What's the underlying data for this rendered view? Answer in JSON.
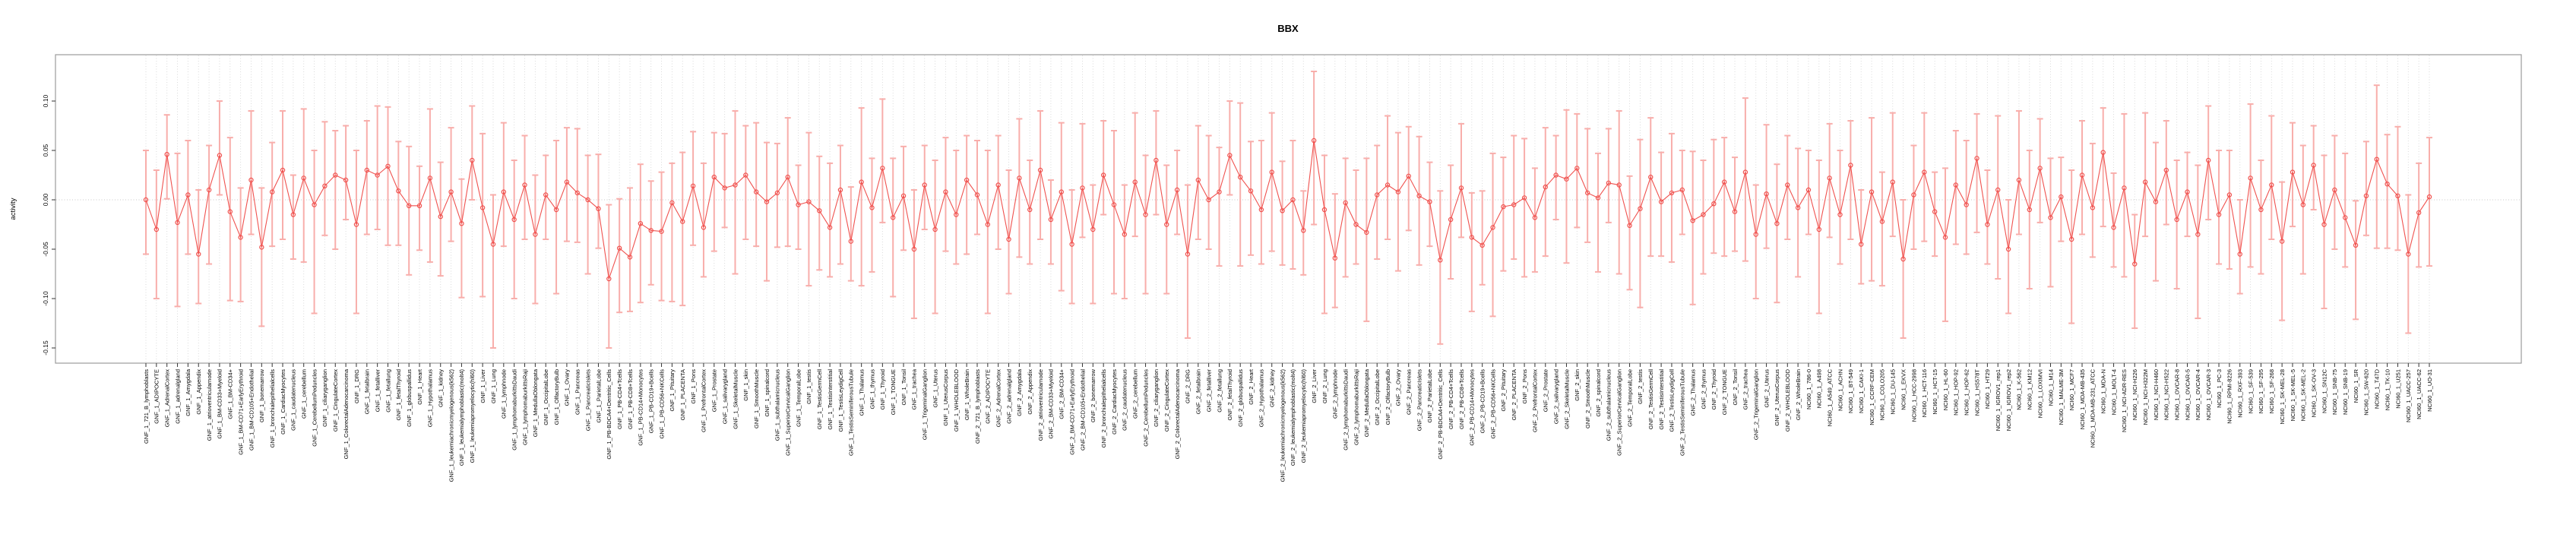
{
  "title": "BBX",
  "ylabel": "activity",
  "colors": {
    "point_line": "#f0524f",
    "error_bar": "#f8aeab",
    "grid": "#d6d6d6",
    "zero_line": "#c8c8c8",
    "border": "#9b9b9b",
    "tick_text": "#000000"
  },
  "y_axis": {
    "ticks": [
      0.1,
      0.05,
      0.0,
      -0.05,
      -0.1,
      -0.15
    ],
    "tick_labels": [
      "0.10",
      "0.05",
      "0.00",
      "-0.05",
      "-0.10",
      "-0.15"
    ]
  },
  "chart_data": {
    "type": "line",
    "subtype": "points-with-error-bars",
    "title": "BBX",
    "xlabel": "",
    "ylabel": "activity",
    "ylim": [
      -0.165,
      0.147
    ],
    "grid": "vertical dotted line per category; horizontal dotted line at y=0",
    "legend": "none",
    "point_style": "open circle, red, connected by red segments",
    "error_bar_style": "salmon vertical bar with horizontal caps",
    "categories": [
      "GNF_1_721_B_lymphoblasts",
      "GNF_1_ADIPOCYTE",
      "GNF_1_AdrenalCortex",
      "GNF_1_adrenalgland",
      "GNF_1_Amygdala",
      "GNF_1_Appendix",
      "GNF_1_atrioventricularnode",
      "GNF_1_BM-CD33+Myeloid",
      "GNF_1_BM-CD34+",
      "GNF_1_BM-CD71+EarlyErythroid",
      "GNF_1_BM-CD105+Endothelial",
      "GNF_1_bonemarrow",
      "GNF_1_bronchialepithelialcells",
      "GNF_1_CardiacMyocytes",
      "GNF_1_caudatenucleus",
      "GNF_1_cerebellum",
      "GNF_1_CerebellumPeduncles",
      "GNF_1_ciliaryganglion",
      "GNF_1_CingulateCortex",
      "GNF_1_ColorectalAdenocarcinoma",
      "GNF_1_DRG",
      "GNF_1_fetalbrain",
      "GNF_1_fetalliver",
      "GNF_1_fetallung",
      "GNF_1_fetalThyroid",
      "GNF_1_globuspallidus",
      "GNF_1_Heart",
      "GNF_1_Hypothalamus",
      "GNF_1_kidney",
      "GNF_1_leukemiachronicmyelogenous(k562)",
      "GNF_1_leukemialymphoblastic(molt4)",
      "GNF_1_leukemiapromyelocytic(hl60)",
      "GNF_1_Liver",
      "GNF_1_Lung",
      "GNF_1_lymphnode",
      "GNF_1_lymphomaburkittsDaudi",
      "GNF_1_lymphomaburkittsRaji",
      "GNF_1_MedullaOblongata",
      "GNF_1_OccipitalLobe",
      "GNF_1_OlfactoryBulb",
      "GNF_1_Ovary",
      "GNF_1_Pancreas",
      "GNF_1_PancreaticIslets",
      "GNF_1_ParietalLobe",
      "GNF_1_PB-BDCA4+Dentritic_Cells",
      "GNF_1_PB-CD4+Tcells",
      "GNF_1_PB-CD8+Tcells",
      "GNF_1_PB-CD14+Monocytes",
      "GNF_1_PB-CD19+Bcells",
      "GNF_1_PB-CD56+NKCells",
      "GNF_1_Pituitary",
      "GNF_1_PLACENTA",
      "GNF_1_Pons",
      "GNF_1_PrefrontalCortex",
      "GNF_1_Prostate",
      "GNF_1_salivarygland",
      "GNF_1_SkeletalMuscle",
      "GNF_1_skin",
      "GNF_1_SmoothMuscle",
      "GNF_1_spinalcord",
      "GNF_1_subthalamicnucleus",
      "GNF_1_SuperiorCervicalGanglion",
      "GNF_1_TemporalLobe",
      "GNF_1_testis",
      "GNF_1_TestisGermCell",
      "GNF_1_TestisInterstitial",
      "GNF_1_TestisLeydigCell",
      "GNF_1_TestisSeminiferousTubule",
      "GNF_1_Thalamus",
      "GNF_1_thymus",
      "GNF_1_Thyroid",
      "GNF_1_TONGUE",
      "GNF_1_Tonsil",
      "GNF_1_trachea",
      "GNF_1_TrigeminalGanglion",
      "GNF_1_Uterus",
      "GNF_1_UterusCorpus",
      "GNF_1_WHOLEBLOOD",
      "GNF_1_WholeBrain",
      "GNF_2_721_B_lymphoblasts",
      "GNF_2_ADIPOCYTE",
      "GNF_2_AdrenalCortex",
      "GNF_2_adrenalgland",
      "GNF_2_Amygdala",
      "GNF_2_Appendix",
      "GNF_2_atrioventricularnode",
      "GNF_2_BM-CD33+Myeloid",
      "GNF_2_BM-CD34+",
      "GNF_2_BM-CD71+EarlyErythroid",
      "GNF_2_BM-CD105+Endothelial",
      "GNF_2_bonemarrow",
      "GNF_2_bronchialepithelialcells",
      "GNF_2_CardiacMyocytes",
      "GNF_2_caudatenucleus",
      "GNF_2_cerebellum",
      "GNF_2_CerebellumPeduncles",
      "GNF_2_ciliaryganglion",
      "GNF_2_CingulateCortex",
      "GNF_2_ColorectalAdenocarcinoma",
      "GNF_2_DRG",
      "GNF_2_fetalbrain",
      "GNF_2_fetalliver",
      "GNF_2_fetallung",
      "GNF_2_fetalThyroid",
      "GNF_2_globuspallidus",
      "GNF_2_Heart",
      "GNF_2_Hypothalamus",
      "GNF_2_kidney",
      "GNF_2_leukemiachronicmyelogenous(k562)",
      "GNF_2_leukemialymphoblastic(molt4)",
      "GNF_2_leukemiapromyelocytic(hl60)",
      "GNF_2_Liver",
      "GNF_2_Lung",
      "GNF_2_lymphnode",
      "GNF_2_lymphomaburkittsDaudi",
      "GNF_2_lymphomaburkittsRaji",
      "GNF_2_MedullaOblongata",
      "GNF_2_OccipitalLobe",
      "GNF_2_OlfactoryBulb",
      "GNF_2_Ovary",
      "GNF_2_Pancreas",
      "GNF_2_PancreaticIslets",
      "GNF_2_ParietalLobe",
      "GNF_2_PB-BDCA4+Dentritic_Cells",
      "GNF_2_PB-CD4+Tcells",
      "GNF_2_PB-CD8+Tcells",
      "GNF_2_PB-CD14+Monocytes",
      "GNF_2_PB-CD19+Bcells",
      "GNF_2_PB-CD56+NKCells",
      "GNF_2_Pituitary",
      "GNF_2_PLACENTA",
      "GNF_2_Pons",
      "GNF_2_PrefrontalCortex",
      "GNF_2_Prostate",
      "GNF_2_salivarygland",
      "GNF_2_SkeletalMuscle",
      "GNF_2_skin",
      "GNF_2_SmoothMuscle",
      "GNF_2_spinalcord",
      "GNF_2_subthalamicnucleus",
      "GNF_2_SuperiorCervicalGanglion",
      "GNF_2_TemporalLobe",
      "GNF_2_testis",
      "GNF_2_TestisGermCell",
      "GNF_2_TestisInterstitial",
      "GNF_2_TestisLeydigCell",
      "GNF_2_TestisSeminiferousTubule",
      "GNF_2_Thalamus",
      "GNF_2_thymus",
      "GNF_2_Thyroid",
      "GNF_2_TONGUE",
      "GNF_2_Tonsil",
      "GNF_2_trachea",
      "GNF_2_TrigeminalGanglion",
      "GNF_2_Uterus",
      "GNF_2_UterusCorpus",
      "GNF_2_WHOLEBLOOD",
      "GNF_2_WholeBrain",
      "NCI60_1_786-0",
      "NCI60_1_A498",
      "NCI60_1_A549_ATCC",
      "NCI60_1_ACHN",
      "NCI60_1_BT-549",
      "NCI60_1_CAKI-1",
      "NCI60_1_CCRF-CEM",
      "NCI60_1_COLO205",
      "NCI60_1_DU-145",
      "NCI60_1_EKVX",
      "NCI60_1_HCC-2998",
      "NCI60_1_HCT-116",
      "NCI60_1_HCT-15",
      "NCI60_1_HL-60",
      "NCI60_1_HOP-92",
      "NCI60_1_HOP-62",
      "NCI60_1_HS578T",
      "NCI60_1_HT29",
      "NCI60_1_IGROV1_rep1",
      "NCI60_1_IGROV1_rep2",
      "NCI60_1_K-562",
      "NCI60_1_KM12",
      "NCI60_1_LOXIMVI",
      "NCI60_1_M14",
      "NCI60_1_MALME-3M",
      "NCI60_1_MCF7",
      "NCI60_1_MDA-MB-435",
      "NCI60_1_MDA-MB-231_ATCC",
      "NCI60_1_MDA-N",
      "NCI60_1_MOLT-4",
      "NCI60_1_NCI-ADR-RES",
      "NCI60_1_NCI-H226",
      "NCI60_1_NCI-H322M",
      "NCI60_1_NCI-H460",
      "NCI60_1_NCI-H522",
      "NCI60_1_OVCAR-8",
      "NCI60_1_OVCAR-5",
      "NCI60_1_OVCAR-4",
      "NCI60_1_OVCAR-3",
      "NCI60_1_PC-3",
      "NCI60_1_RPMI-8226",
      "NCI60_1_RXF-393",
      "NCI60_1_SF-539",
      "NCI60_1_SF-295",
      "NCI60_1_SF-268",
      "NCI60_1_SK-MEL-28",
      "NCI60_1_SK-MEL-5",
      "NCI60_1_SK-MEL-2",
      "NCI60_1_SK-OV-3",
      "NCI60_1_SN12C",
      "NCI60_1_SNB-75",
      "NCI60_1_SNB-19",
      "NCI60_1_SR",
      "NCI60_1_SW-620",
      "NCI60_1_T47D",
      "NCI60_1_TK-10",
      "NCI60_1_U251",
      "NCI60_1_UACC-257",
      "NCI60_1_UACC-62",
      "NCI60_1_UO-31"
    ],
    "values": [
      0.0,
      -0.03,
      0.046,
      -0.023,
      0.005,
      -0.055,
      0.01,
      0.045,
      -0.012,
      -0.038,
      0.02,
      -0.048,
      0.008,
      0.03,
      -0.015,
      0.022,
      -0.005,
      0.014,
      0.025,
      0.02,
      -0.025,
      0.03,
      0.025,
      0.034,
      0.009,
      -0.006,
      -0.006,
      0.022,
      -0.017,
      0.008,
      -0.024,
      0.04,
      -0.008,
      -0.045,
      0.008,
      -0.02,
      0.015,
      -0.035,
      0.005,
      -0.01,
      0.018,
      0.007,
      0.0,
      -0.009,
      -0.08,
      -0.049,
      -0.058,
      -0.024,
      -0.031,
      -0.032,
      -0.003,
      -0.022,
      0.014,
      -0.028,
      0.023,
      0.012,
      0.015,
      0.025,
      0.008,
      -0.002,
      0.007,
      0.023,
      -0.005,
      -0.002,
      -0.011,
      -0.028,
      0.01,
      -0.042,
      0.018,
      -0.008,
      0.032,
      -0.018,
      0.004,
      -0.05,
      0.015,
      -0.03,
      0.008,
      -0.015,
      0.02,
      0.005,
      -0.025,
      0.015,
      -0.04,
      0.022,
      -0.01,
      0.03,
      -0.02,
      0.008,
      -0.045,
      0.012,
      -0.03,
      0.025,
      -0.005,
      -0.035,
      0.018,
      -0.015,
      0.04,
      -0.025,
      0.01,
      -0.055,
      0.02,
      0.0,
      0.008,
      0.045,
      0.023,
      0.009,
      -0.01,
      0.028,
      -0.011,
      0.0,
      -0.031,
      0.06,
      -0.01,
      -0.059,
      -0.003,
      -0.025,
      -0.033,
      0.005,
      0.015,
      0.008,
      0.024,
      0.004,
      -0.002,
      -0.061,
      -0.02,
      0.012,
      -0.038,
      -0.046,
      -0.028,
      -0.007,
      -0.005,
      0.002,
      -0.018,
      0.013,
      0.025,
      0.021,
      0.032,
      0.007,
      0.002,
      0.017,
      0.015,
      -0.026,
      -0.009,
      0.023,
      -0.002,
      0.007,
      0.01,
      -0.021,
      -0.015,
      -0.004,
      0.018,
      -0.012,
      0.028,
      -0.035,
      0.006,
      -0.024,
      0.015,
      -0.008,
      0.01,
      -0.03,
      0.022,
      -0.015,
      0.035,
      -0.045,
      0.008,
      -0.022,
      0.018,
      -0.06,
      0.005,
      0.028,
      -0.012,
      -0.038,
      0.015,
      -0.005,
      0.042,
      -0.025,
      0.01,
      -0.05,
      0.02,
      -0.01,
      0.032,
      -0.018,
      0.003,
      -0.04,
      0.025,
      -0.008,
      0.048,
      -0.028,
      0.012,
      -0.065,
      0.018,
      -0.002,
      0.03,
      -0.02,
      0.008,
      -0.035,
      0.04,
      -0.015,
      0.005,
      -0.055,
      0.022,
      -0.01,
      0.015,
      -0.042,
      0.028,
      -0.005,
      0.035,
      -0.025,
      0.01,
      -0.018,
      -0.046,
      0.004,
      0.041,
      0.016,
      0.004,
      -0.055,
      -0.013,
      0.003
    ],
    "whiskers": [
      [
        0.055,
        0.05
      ],
      [
        0.07,
        0.06
      ],
      [
        0.045,
        0.04
      ],
      [
        0.085,
        0.07
      ],
      [
        0.06,
        0.055
      ],
      [
        0.05,
        0.065
      ],
      [
        0.075,
        0.045
      ],
      [
        0.04,
        0.055
      ],
      [
        0.09,
        0.075
      ],
      [
        0.065,
        0.05
      ],
      [
        0.055,
        0.07
      ],
      [
        0.08,
        0.06
      ],
      [
        0.055,
        0.05
      ],
      [
        0.07,
        0.06
      ],
      [
        0.045,
        0.04
      ],
      [
        0.085,
        0.07
      ],
      [
        0.11,
        0.055
      ],
      [
        0.05,
        0.065
      ],
      [
        0.075,
        0.045
      ],
      [
        0.04,
        0.055
      ],
      [
        0.09,
        0.075
      ],
      [
        0.065,
        0.05
      ],
      [
        0.055,
        0.07
      ],
      [
        0.08,
        0.06
      ],
      [
        0.055,
        0.05
      ],
      [
        0.07,
        0.06
      ],
      [
        0.045,
        0.04
      ],
      [
        0.085,
        0.07
      ],
      [
        0.06,
        0.055
      ],
      [
        0.05,
        0.065
      ],
      [
        0.075,
        0.045
      ],
      [
        0.04,
        0.055
      ],
      [
        0.09,
        0.075
      ],
      [
        0.105,
        0.05
      ],
      [
        0.055,
        0.07
      ],
      [
        0.08,
        0.06
      ],
      [
        0.055,
        0.05
      ],
      [
        0.07,
        0.06
      ],
      [
        0.045,
        0.04
      ],
      [
        0.085,
        0.07
      ],
      [
        0.06,
        0.055
      ],
      [
        0.05,
        0.065
      ],
      [
        0.075,
        0.045
      ],
      [
        0.04,
        0.055
      ],
      [
        0.07,
        0.075
      ],
      [
        0.065,
        0.05
      ],
      [
        0.055,
        0.07
      ],
      [
        0.08,
        0.06
      ],
      [
        0.055,
        0.05
      ],
      [
        0.07,
        0.06
      ],
      [
        0.1,
        0.04
      ],
      [
        0.085,
        0.07
      ],
      [
        0.06,
        0.055
      ],
      [
        0.05,
        0.065
      ],
      [
        0.075,
        0.045
      ],
      [
        0.04,
        0.055
      ],
      [
        0.09,
        0.075
      ],
      [
        0.065,
        0.05
      ],
      [
        0.055,
        0.07
      ],
      [
        0.08,
        0.06
      ],
      [
        0.055,
        0.05
      ],
      [
        0.07,
        0.06
      ],
      [
        0.045,
        0.04
      ],
      [
        0.085,
        0.07
      ],
      [
        0.06,
        0.055
      ],
      [
        0.05,
        0.065
      ],
      [
        0.075,
        0.045
      ],
      [
        0.04,
        0.055
      ],
      [
        0.105,
        0.075
      ],
      [
        0.065,
        0.05
      ],
      [
        0.055,
        0.07
      ],
      [
        0.08,
        0.06
      ],
      [
        0.055,
        0.05
      ],
      [
        0.07,
        0.06
      ],
      [
        0.045,
        0.04
      ],
      [
        0.085,
        0.07
      ],
      [
        0.06,
        0.055
      ],
      [
        0.05,
        0.065
      ],
      [
        0.075,
        0.045
      ],
      [
        0.04,
        0.055
      ],
      [
        0.09,
        0.075
      ],
      [
        0.065,
        0.05
      ],
      [
        0.055,
        0.07
      ],
      [
        0.08,
        0.06
      ],
      [
        0.055,
        0.05
      ],
      [
        0.07,
        0.06
      ],
      [
        0.045,
        0.04
      ],
      [
        0.1,
        0.07
      ],
      [
        0.06,
        0.055
      ],
      [
        0.05,
        0.065
      ],
      [
        0.075,
        0.045
      ],
      [
        0.04,
        0.055
      ],
      [
        0.09,
        0.075
      ],
      [
        0.065,
        0.05
      ],
      [
        0.055,
        0.07
      ],
      [
        0.08,
        0.06
      ],
      [
        0.055,
        0.05
      ],
      [
        0.07,
        0.06
      ],
      [
        0.045,
        0.04
      ],
      [
        0.085,
        0.07
      ],
      [
        0.06,
        0.055
      ],
      [
        0.05,
        0.065
      ],
      [
        0.075,
        0.045
      ],
      [
        0.04,
        0.055
      ],
      [
        0.09,
        0.075
      ],
      [
        0.065,
        0.05
      ],
      [
        0.055,
        0.07
      ],
      [
        0.08,
        0.06
      ],
      [
        0.055,
        0.05
      ],
      [
        0.07,
        0.06
      ],
      [
        0.045,
        0.04
      ],
      [
        0.085,
        0.07
      ],
      [
        0.105,
        0.055
      ],
      [
        0.05,
        0.065
      ],
      [
        0.075,
        0.045
      ],
      [
        0.04,
        0.055
      ],
      [
        0.09,
        0.075
      ],
      [
        0.065,
        0.05
      ],
      [
        0.055,
        0.07
      ],
      [
        0.08,
        0.06
      ],
      [
        0.055,
        0.05
      ],
      [
        0.07,
        0.06
      ],
      [
        0.045,
        0.04
      ],
      [
        0.085,
        0.07
      ],
      [
        0.06,
        0.055
      ],
      [
        0.05,
        0.065
      ],
      [
        0.075,
        0.045
      ],
      [
        0.04,
        0.055
      ],
      [
        0.09,
        0.075
      ],
      [
        0.065,
        0.05
      ],
      [
        0.055,
        0.07
      ],
      [
        0.08,
        0.06
      ],
      [
        0.055,
        0.05
      ],
      [
        0.07,
        0.06
      ],
      [
        0.045,
        0.04
      ],
      [
        0.085,
        0.07
      ],
      [
        0.06,
        0.055
      ],
      [
        0.05,
        0.065
      ],
      [
        0.075,
        0.045
      ],
      [
        0.04,
        0.055
      ],
      [
        0.09,
        0.075
      ],
      [
        0.065,
        0.05
      ],
      [
        0.1,
        0.07
      ],
      [
        0.08,
        0.06
      ],
      [
        0.055,
        0.05
      ],
      [
        0.07,
        0.06
      ],
      [
        0.045,
        0.04
      ],
      [
        0.085,
        0.07
      ],
      [
        0.06,
        0.055
      ],
      [
        0.05,
        0.065
      ],
      [
        0.075,
        0.045
      ],
      [
        0.04,
        0.055
      ],
      [
        0.09,
        0.075
      ],
      [
        0.065,
        0.05
      ],
      [
        0.055,
        0.07
      ],
      [
        0.08,
        0.06
      ],
      [
        0.055,
        0.05
      ],
      [
        0.07,
        0.06
      ],
      [
        0.045,
        0.04
      ],
      [
        0.085,
        0.07
      ],
      [
        0.06,
        0.055
      ],
      [
        0.05,
        0.065
      ],
      [
        0.075,
        0.045
      ],
      [
        0.04,
        0.055
      ],
      [
        0.09,
        0.075
      ],
      [
        0.065,
        0.05
      ],
      [
        0.055,
        0.07
      ],
      [
        0.08,
        0.06
      ],
      [
        0.055,
        0.05
      ],
      [
        0.07,
        0.06
      ],
      [
        0.045,
        0.04
      ],
      [
        0.085,
        0.07
      ],
      [
        0.06,
        0.055
      ],
      [
        0.05,
        0.065
      ],
      [
        0.075,
        0.045
      ],
      [
        0.04,
        0.055
      ],
      [
        0.09,
        0.075
      ],
      [
        0.065,
        0.05
      ],
      [
        0.055,
        0.07
      ],
      [
        0.08,
        0.06
      ],
      [
        0.055,
        0.05
      ],
      [
        0.07,
        0.06
      ],
      [
        0.045,
        0.04
      ],
      [
        0.085,
        0.07
      ],
      [
        0.06,
        0.055
      ],
      [
        0.05,
        0.065
      ],
      [
        0.075,
        0.045
      ],
      [
        0.04,
        0.055
      ],
      [
        0.09,
        0.075
      ],
      [
        0.065,
        0.05
      ],
      [
        0.055,
        0.07
      ],
      [
        0.08,
        0.06
      ],
      [
        0.055,
        0.05
      ],
      [
        0.07,
        0.06
      ],
      [
        0.045,
        0.04
      ],
      [
        0.085,
        0.07
      ],
      [
        0.06,
        0.055
      ],
      [
        0.05,
        0.065
      ],
      [
        0.075,
        0.045
      ],
      [
        0.04,
        0.055
      ],
      [
        0.09,
        0.075
      ],
      [
        0.065,
        0.05
      ],
      [
        0.055,
        0.07
      ],
      [
        0.08,
        0.06
      ],
      [
        0.055,
        0.05
      ],
      [
        0.07,
        0.06
      ],
      [
        0.045,
        0.04
      ],
      [
        0.085,
        0.07
      ],
      [
        0.06,
        0.055
      ],
      [
        0.05,
        0.065
      ],
      [
        0.075,
        0.045
      ],
      [
        0.04,
        0.055
      ],
      [
        0.09,
        0.075
      ],
      [
        0.065,
        0.05
      ],
      [
        0.055,
        0.07
      ],
      [
        0.08,
        0.06
      ],
      [
        0.055,
        0.05
      ],
      [
        0.07,
        0.06
      ]
    ]
  }
}
